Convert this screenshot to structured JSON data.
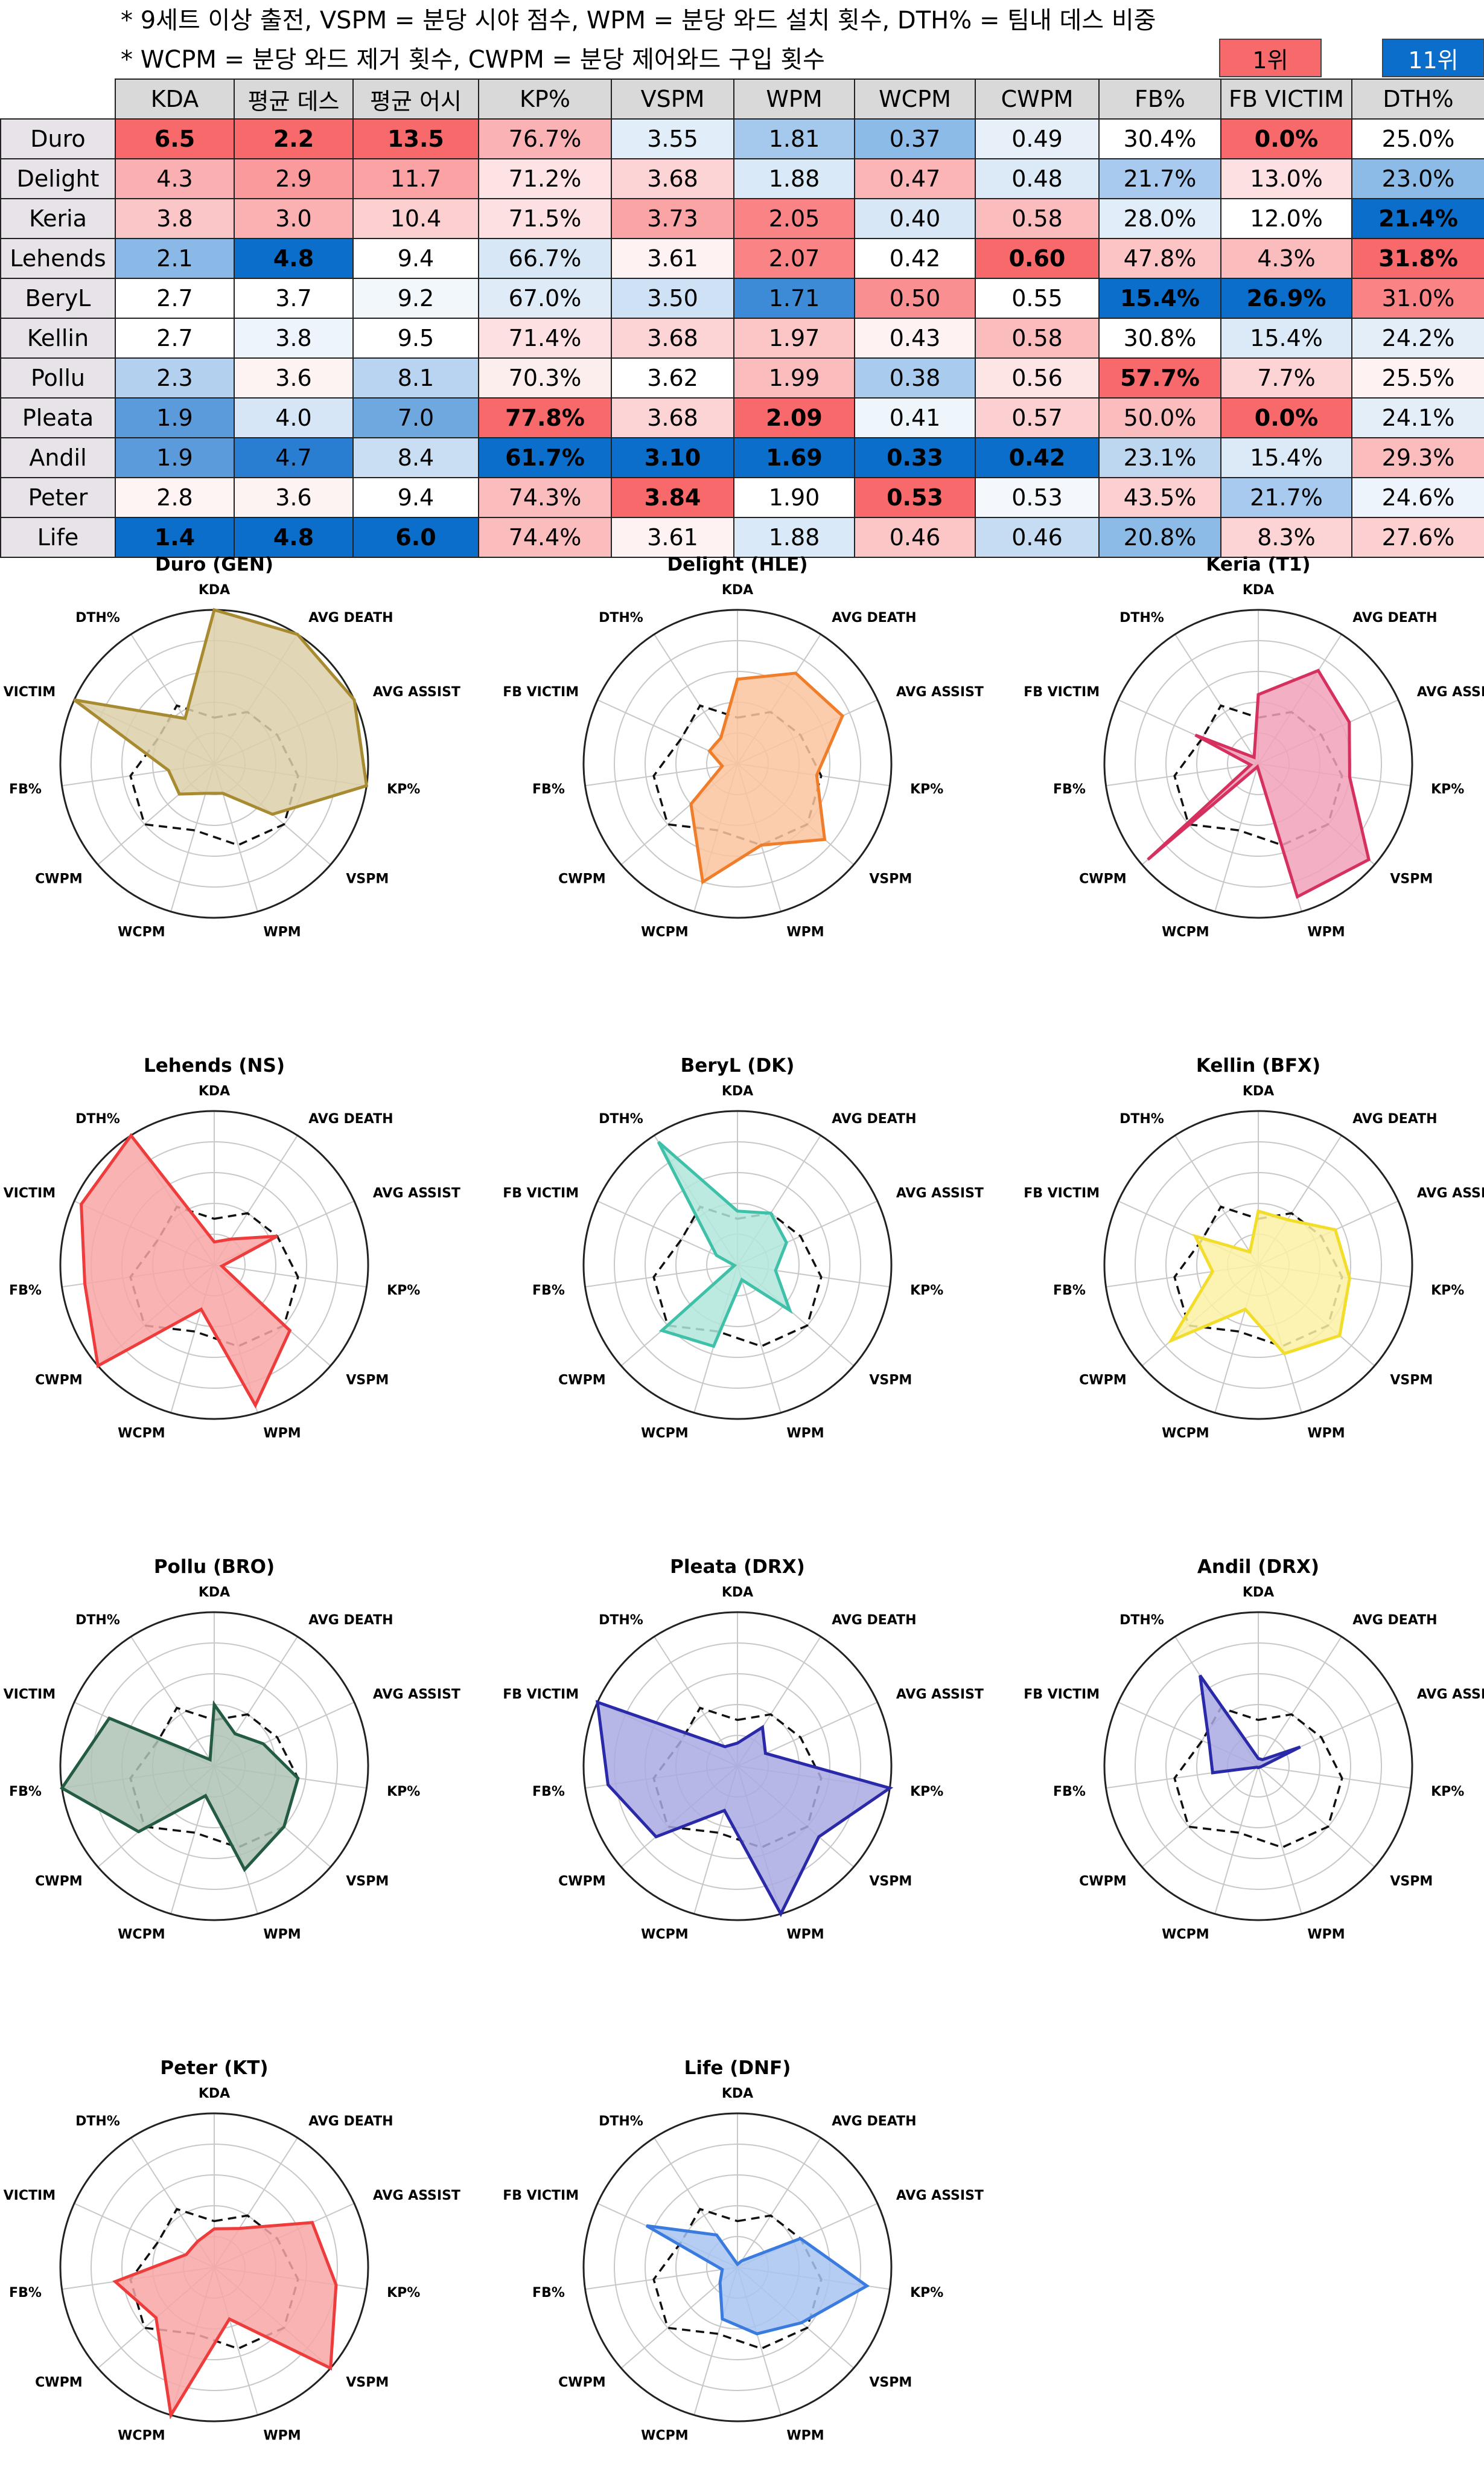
{
  "notes": {
    "line1": "* 9세트 이상 출전, VSPM = 분당 시야 점수, WPM = 분당 와드 설치 횟수, DTH% = 팀내 데스 비중",
    "line2": "* WCPM = 분당 와드 제거 횟수, CWPM = 분당 제어와드 구입 횟수"
  },
  "legend": {
    "first_label": "1위",
    "first_color": "#f8696b",
    "last_label": "11위",
    "last_color": "#0b6ecb"
  },
  "table": {
    "headers": [
      "KDA",
      "평균 데스",
      "평균 어시",
      "KP%",
      "VSPM",
      "WPM",
      "WCPM",
      "CWPM",
      "FB%",
      "FB VICTIM",
      "DTH%"
    ],
    "rows": [
      {
        "player": "Duro",
        "cells": [
          {
            "v": "6.5",
            "bg": "#f8696b",
            "b": true
          },
          {
            "v": "2.2",
            "bg": "#f8696b",
            "b": true
          },
          {
            "v": "13.5",
            "bg": "#f8696b",
            "b": true
          },
          {
            "v": "76.7%",
            "bg": "#fbb2b4"
          },
          {
            "v": "3.55",
            "bg": "#e1edf8"
          },
          {
            "v": "1.81",
            "bg": "#a5c9ec"
          },
          {
            "v": "0.37",
            "bg": "#8dbbe8"
          },
          {
            "v": "0.49",
            "bg": "#e7f0f9"
          },
          {
            "v": "30.4%",
            "bg": "#ffffff"
          },
          {
            "v": "0.0%",
            "bg": "#f8696b",
            "b": true
          },
          {
            "v": "25.0%",
            "bg": "#ffffff"
          }
        ]
      },
      {
        "player": "Delight",
        "cells": [
          {
            "v": "4.3",
            "bg": "#fab0b2"
          },
          {
            "v": "2.9",
            "bg": "#fa9a9c"
          },
          {
            "v": "11.7",
            "bg": "#fba2a4"
          },
          {
            "v": "71.2%",
            "bg": "#fde3e4"
          },
          {
            "v": "3.68",
            "bg": "#fdd4d5"
          },
          {
            "v": "1.88",
            "bg": "#dae9f7"
          },
          {
            "v": "0.47",
            "bg": "#fbb5b7"
          },
          {
            "v": "0.48",
            "bg": "#dce9f7"
          },
          {
            "v": "21.7%",
            "bg": "#a8caee"
          },
          {
            "v": "13.0%",
            "bg": "#fde1e2"
          },
          {
            "v": "23.0%",
            "bg": "#8dbbe8"
          }
        ]
      },
      {
        "player": "Keria",
        "cells": [
          {
            "v": "3.8",
            "bg": "#fbc6c7"
          },
          {
            "v": "3.0",
            "bg": "#fbb0b2"
          },
          {
            "v": "10.4",
            "bg": "#fcd0d1"
          },
          {
            "v": "71.5%",
            "bg": "#fde1e2"
          },
          {
            "v": "3.73",
            "bg": "#fba4a6"
          },
          {
            "v": "2.05",
            "bg": "#f98385"
          },
          {
            "v": "0.40",
            "bg": "#d8e7f6"
          },
          {
            "v": "0.58",
            "bg": "#fbbcbe"
          },
          {
            "v": "28.0%",
            "bg": "#e1edf8"
          },
          {
            "v": "12.0%",
            "bg": "#ffffff"
          },
          {
            "v": "21.4%",
            "bg": "#0b6ecb",
            "b": true
          }
        ]
      },
      {
        "player": "Lehends",
        "cells": [
          {
            "v": "2.1",
            "bg": "#8ab9e8"
          },
          {
            "v": "4.8",
            "bg": "#0b6ecb",
            "b": true
          },
          {
            "v": "9.4",
            "bg": "#ffffff"
          },
          {
            "v": "66.7%",
            "bg": "#d8e7f6"
          },
          {
            "v": "3.61",
            "bg": "#fef2f2"
          },
          {
            "v": "2.07",
            "bg": "#f98385"
          },
          {
            "v": "0.42",
            "bg": "#ffffff"
          },
          {
            "v": "0.60",
            "bg": "#f8696b",
            "b": true
          },
          {
            "v": "47.8%",
            "bg": "#fcc4c5"
          },
          {
            "v": "4.3%",
            "bg": "#fbbcbe"
          },
          {
            "v": "31.8%",
            "bg": "#f8696b",
            "b": true
          }
        ]
      },
      {
        "player": "BeryL",
        "cells": [
          {
            "v": "2.7",
            "bg": "#ffffff"
          },
          {
            "v": "3.7",
            "bg": "#ffffff"
          },
          {
            "v": "9.2",
            "bg": "#f2f7fc"
          },
          {
            "v": "67.0%",
            "bg": "#dfecf8"
          },
          {
            "v": "3.50",
            "bg": "#cfe2f5"
          },
          {
            "v": "1.71",
            "bg": "#3d8bd6"
          },
          {
            "v": "0.50",
            "bg": "#f98f91"
          },
          {
            "v": "0.55",
            "bg": "#ffffff"
          },
          {
            "v": "15.4%",
            "bg": "#0b6ecb",
            "b": true
          },
          {
            "v": "26.9%",
            "bg": "#0b6ecb",
            "b": true
          },
          {
            "v": "31.0%",
            "bg": "#f98385"
          }
        ]
      },
      {
        "player": "Kellin",
        "cells": [
          {
            "v": "2.7",
            "bg": "#ffffff"
          },
          {
            "v": "3.8",
            "bg": "#edf4fb"
          },
          {
            "v": "9.5",
            "bg": "#ffffff"
          },
          {
            "v": "71.4%",
            "bg": "#fde1e2"
          },
          {
            "v": "3.68",
            "bg": "#fdd4d5"
          },
          {
            "v": "1.97",
            "bg": "#fcc6c7"
          },
          {
            "v": "0.43",
            "bg": "#fef2f2"
          },
          {
            "v": "0.58",
            "bg": "#fbbcbe"
          },
          {
            "v": "30.8%",
            "bg": "#ffffff"
          },
          {
            "v": "15.4%",
            "bg": "#dceaf7"
          },
          {
            "v": "24.2%",
            "bg": "#e3eef9"
          }
        ]
      },
      {
        "player": "Pollu",
        "cells": [
          {
            "v": "2.3",
            "bg": "#b3d1ef"
          },
          {
            "v": "3.6",
            "bg": "#fef3f3"
          },
          {
            "v": "8.1",
            "bg": "#b8d4f0"
          },
          {
            "v": "70.3%",
            "bg": "#fdeeee"
          },
          {
            "v": "3.62",
            "bg": "#ffffff"
          },
          {
            "v": "1.99",
            "bg": "#fbbcbe"
          },
          {
            "v": "0.38",
            "bg": "#a9ccee"
          },
          {
            "v": "0.56",
            "bg": "#fde4e5"
          },
          {
            "v": "57.7%",
            "bg": "#f8696b",
            "b": true
          },
          {
            "v": "7.7%",
            "bg": "#fdd4d5"
          },
          {
            "v": "25.5%",
            "bg": "#fef2f2"
          }
        ]
      },
      {
        "player": "Pleata",
        "cells": [
          {
            "v": "1.9",
            "bg": "#5b9bdc"
          },
          {
            "v": "4.0",
            "bg": "#d6e6f6"
          },
          {
            "v": "7.0",
            "bg": "#6fa8df"
          },
          {
            "v": "77.8%",
            "bg": "#f8696b",
            "b": true
          },
          {
            "v": "3.68",
            "bg": "#fdd4d5"
          },
          {
            "v": "2.09",
            "bg": "#f8696b",
            "b": true
          },
          {
            "v": "0.41",
            "bg": "#eef5fb"
          },
          {
            "v": "0.57",
            "bg": "#fcd0d1"
          },
          {
            "v": "50.0%",
            "bg": "#fbbcbe"
          },
          {
            "v": "0.0%",
            "bg": "#f8696b",
            "b": true
          },
          {
            "v": "24.1%",
            "bg": "#e3eef9"
          }
        ]
      },
      {
        "player": "Andil",
        "cells": [
          {
            "v": "1.9",
            "bg": "#5b9bdc"
          },
          {
            "v": "4.7",
            "bg": "#2a7ed2"
          },
          {
            "v": "8.4",
            "bg": "#c9def3"
          },
          {
            "v": "61.7%",
            "bg": "#0b6ecb",
            "b": true
          },
          {
            "v": "3.10",
            "bg": "#0b6ecb",
            "b": true
          },
          {
            "v": "1.69",
            "bg": "#0b6ecb",
            "b": true
          },
          {
            "v": "0.33",
            "bg": "#0b6ecb",
            "b": true
          },
          {
            "v": "0.42",
            "bg": "#0b6ecb",
            "b": true
          },
          {
            "v": "23.1%",
            "bg": "#bdd7f1"
          },
          {
            "v": "15.4%",
            "bg": "#dceaf7"
          },
          {
            "v": "29.3%",
            "bg": "#fbbcbe"
          }
        ]
      },
      {
        "player": "Peter",
        "cells": [
          {
            "v": "2.8",
            "bg": "#fef4f4"
          },
          {
            "v": "3.6",
            "bg": "#fef3f3"
          },
          {
            "v": "9.4",
            "bg": "#ffffff"
          },
          {
            "v": "74.3%",
            "bg": "#fbbcbe"
          },
          {
            "v": "3.84",
            "bg": "#f8696b",
            "b": true
          },
          {
            "v": "1.90",
            "bg": "#ffffff"
          },
          {
            "v": "0.53",
            "bg": "#f8696b",
            "b": true
          },
          {
            "v": "0.53",
            "bg": "#f4f8fc"
          },
          {
            "v": "43.5%",
            "bg": "#fcd0d1"
          },
          {
            "v": "21.7%",
            "bg": "#a8caee"
          },
          {
            "v": "24.6%",
            "bg": "#edf4fb"
          }
        ]
      },
      {
        "player": "Life",
        "cells": [
          {
            "v": "1.4",
            "bg": "#0b6ecb",
            "b": true
          },
          {
            "v": "4.8",
            "bg": "#0b6ecb",
            "b": true
          },
          {
            "v": "6.0",
            "bg": "#0b6ecb",
            "b": true
          },
          {
            "v": "74.4%",
            "bg": "#fbbcbe"
          },
          {
            "v": "3.61",
            "bg": "#fef2f2"
          },
          {
            "v": "1.88",
            "bg": "#dae9f7"
          },
          {
            "v": "0.46",
            "bg": "#fcc6c7"
          },
          {
            "v": "0.46",
            "bg": "#c5dcf2"
          },
          {
            "v": "20.8%",
            "bg": "#8dbbe8"
          },
          {
            "v": "8.3%",
            "bg": "#fdd4d5"
          },
          {
            "v": "27.6%",
            "bg": "#fcd0d1"
          }
        ]
      }
    ]
  },
  "chart_data": {
    "type": "radar",
    "axes": [
      "KDA",
      "AVG DEATH",
      "AVG ASSIST",
      "KP%",
      "VSPM",
      "WPM",
      "WCPM",
      "CWPM",
      "FB%",
      "FB VICTIM",
      "DTH%"
    ],
    "rlim": [
      0,
      1
    ],
    "grid": true,
    "reference_line": [
      0.3,
      0.4,
      0.45,
      0.55,
      0.6,
      0.55,
      0.45,
      0.6,
      0.55,
      0.4,
      0.45
    ],
    "charts": [
      {
        "title": "Duro (GEN)",
        "color": "#a88b30",
        "fill": "#dccfa8",
        "values": [
          1.0,
          1.0,
          1.0,
          1.0,
          0.5,
          0.2,
          0.2,
          0.3,
          0.3,
          1.0,
          0.35
        ]
      },
      {
        "title": "Delight (HLE)",
        "color": "#ef7d2a",
        "fill": "#fcc49d",
        "values": [
          0.55,
          0.7,
          0.75,
          0.52,
          0.75,
          0.55,
          0.8,
          0.4,
          0.1,
          0.2,
          0.2
        ]
      },
      {
        "title": "Keria (T1)",
        "color": "#d6305e",
        "fill": "#f1a1b8",
        "values": [
          0.45,
          0.72,
          0.65,
          0.6,
          0.95,
          0.9,
          0.02,
          0.95,
          0.05,
          0.45,
          0.05
        ]
      },
      {
        "title": "Lehends (NS)",
        "color": "#ee3b3b",
        "fill": "#f8a6a6",
        "values": [
          0.15,
          0.2,
          0.45,
          0.05,
          0.65,
          0.95,
          0.3,
          1.0,
          0.85,
          0.95,
          1.0
        ]
      },
      {
        "title": "BeryL (DK)",
        "color": "#3ec1a8",
        "fill": "#b2e6da",
        "values": [
          0.35,
          0.4,
          0.35,
          0.25,
          0.45,
          0.1,
          0.55,
          0.65,
          0.02,
          0.15,
          0.95
        ]
      },
      {
        "title": "Kellin (BFX)",
        "color": "#f1dd2a",
        "fill": "#fbf0a3",
        "values": [
          0.35,
          0.35,
          0.55,
          0.6,
          0.7,
          0.6,
          0.3,
          0.75,
          0.3,
          0.45,
          0.1
        ]
      },
      {
        "title": "Pollu (BRO)",
        "color": "#245c43",
        "fill": "#aec3b5",
        "values": [
          0.4,
          0.25,
          0.35,
          0.55,
          0.6,
          0.7,
          0.2,
          0.65,
          1.0,
          0.75,
          0.05
        ]
      },
      {
        "title": "Pleata (DRX)",
        "color": "#2a2aa8",
        "fill": "#a9a9e3",
        "values": [
          0.15,
          0.3,
          0.2,
          1.0,
          0.7,
          1.0,
          0.3,
          0.7,
          0.85,
          1.0,
          0.15
        ]
      },
      {
        "title": "Andil (DRX)",
        "color": "#2a2aa8",
        "fill": "#a9a9e3",
        "values": [
          0.05,
          0.05,
          0.3,
          0.02,
          0.01,
          0.01,
          0.01,
          0.01,
          0.3,
          0.35,
          0.7
        ]
      },
      {
        "title": "Peter (KT)",
        "color": "#ee3b3b",
        "fill": "#f8a6a6",
        "values": [
          0.25,
          0.3,
          0.7,
          0.8,
          1.0,
          0.35,
          1.0,
          0.5,
          0.65,
          0.2,
          0.2
        ]
      },
      {
        "title": "Life (DNF)",
        "color": "#3a7be0",
        "fill": "#a9c4f1",
        "values": [
          0.02,
          0.05,
          0.45,
          0.85,
          0.55,
          0.45,
          0.35,
          0.15,
          0.1,
          0.65,
          0.25
        ]
      }
    ]
  }
}
